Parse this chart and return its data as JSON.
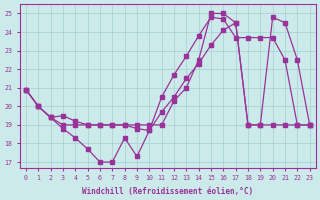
{
  "xlabel": "Windchill (Refroidissement éolien,°C)",
  "bg_color": "#cceaea",
  "grid_color": "#aad4d4",
  "line_color": "#993399",
  "ylim": [
    16.7,
    25.5
  ],
  "xlim": [
    -0.5,
    23.5
  ],
  "yticks": [
    17,
    18,
    19,
    20,
    21,
    22,
    23,
    24,
    25
  ],
  "xticks": [
    0,
    1,
    2,
    3,
    4,
    5,
    6,
    7,
    8,
    9,
    10,
    11,
    12,
    13,
    14,
    15,
    16,
    17,
    18,
    19,
    20,
    21,
    22,
    23
  ],
  "line1_x": [
    0,
    1,
    2,
    3,
    4,
    5,
    6,
    7,
    8,
    9,
    10,
    11,
    12,
    13,
    14,
    15,
    16,
    17,
    18,
    19,
    20,
    21,
    22,
    23
  ],
  "line1_y": [
    20.9,
    20.0,
    19.4,
    18.8,
    18.3,
    17.7,
    17.0,
    17.0,
    18.3,
    17.3,
    18.7,
    20.5,
    21.7,
    22.7,
    23.8,
    24.8,
    24.7,
    23.7,
    23.7,
    23.7,
    23.7,
    22.5,
    19.0,
    19.0
  ],
  "line2_x": [
    0,
    1,
    2,
    3,
    4,
    5,
    6,
    7,
    8,
    9,
    10,
    11,
    12,
    13,
    14,
    15,
    16,
    17,
    18,
    19,
    20,
    21,
    22,
    23
  ],
  "line2_y": [
    20.9,
    20.0,
    19.4,
    19.5,
    19.2,
    19.0,
    19.0,
    19.0,
    19.0,
    18.8,
    18.7,
    19.7,
    20.5,
    21.5,
    22.3,
    23.3,
    24.1,
    24.5,
    19.0,
    19.0,
    19.0,
    19.0,
    19.0,
    19.0
  ],
  "line3_x": [
    0,
    1,
    2,
    3,
    4,
    5,
    6,
    7,
    8,
    9,
    10,
    11,
    12,
    13,
    14,
    15,
    16,
    17,
    18,
    19,
    20,
    21,
    22,
    23
  ],
  "line3_y": [
    20.9,
    20.0,
    19.4,
    19.0,
    19.0,
    19.0,
    19.0,
    19.0,
    19.0,
    19.0,
    19.0,
    19.0,
    20.3,
    21.0,
    22.5,
    25.0,
    25.0,
    24.5,
    19.0,
    19.0,
    24.8,
    24.5,
    22.5,
    19.0
  ]
}
